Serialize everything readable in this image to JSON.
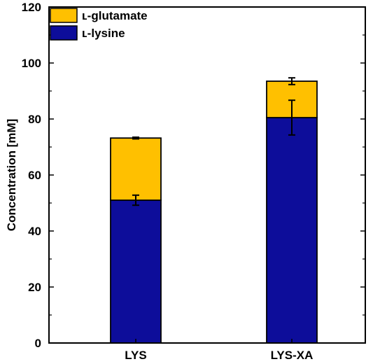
{
  "chart_data": {
    "type": "bar",
    "stacked": true,
    "categories": [
      "LYS",
      "LYS-XA"
    ],
    "series": [
      {
        "name": "L-lysine",
        "values": [
          51,
          80.5
        ],
        "errors": [
          1.8,
          6.2
        ],
        "color": "#0d0d9a"
      },
      {
        "name": "L-glutamate",
        "values": [
          22.2,
          13
        ],
        "errors": [
          0.3,
          1.2
        ],
        "color": "#ffc000"
      }
    ],
    "legend_labels": [
      "ʟ-glutamate",
      "ʟ-lysine"
    ],
    "title": "",
    "xlabel": "",
    "ylabel": "Concentration [mM]",
    "ylim": [
      0,
      120
    ],
    "yticks": [
      "0",
      "20",
      "40",
      "60",
      "80",
      "100",
      "120"
    ],
    "grid": false,
    "legend_position": "top-left"
  }
}
